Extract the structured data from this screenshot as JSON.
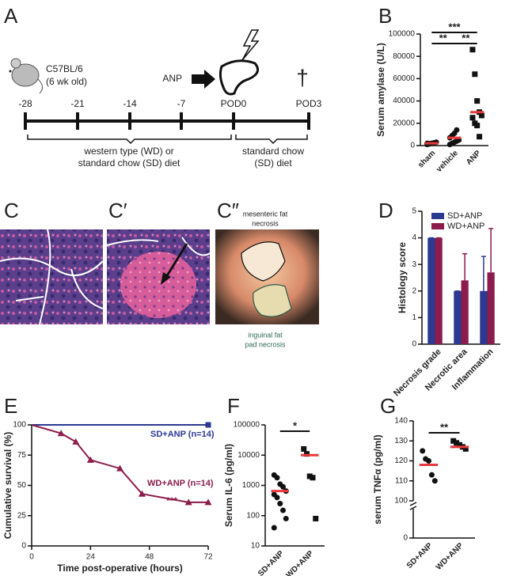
{
  "timeline": {
    "panel": "A",
    "mouse": [
      "C57BL/6",
      "(6 wk old)"
    ],
    "treatment": "ANP",
    "death_marker": "†",
    "days": [
      "-28",
      "-21",
      "-14",
      "-7",
      "POD0",
      "POD3"
    ],
    "diet_periods": [
      [
        "western type (WD) or",
        "standard chow (SD) diet"
      ],
      [
        "standard chow",
        "(SD) diet"
      ]
    ]
  },
  "histology": {
    "panels": [
      "C",
      "C′",
      "C″"
    ],
    "annotations": [
      [
        "mesenteric fat",
        "necrosis"
      ],
      [
        "inguinal fat",
        "pad necrosis"
      ]
    ]
  },
  "chart_data": [
    {
      "panel": "B",
      "type": "dotplot",
      "ylabel": "Serum amylase (U/L)",
      "categories": [
        "sham",
        "vehicle",
        "ANP"
      ],
      "points": [
        [
          1000,
          1500,
          2000,
          2500,
          3000,
          2000,
          1800
        ],
        [
          1000,
          2000,
          3000,
          4000,
          5000,
          7000,
          9000,
          11000,
          14000
        ],
        [
          86000,
          64000,
          40000,
          30000,
          27000,
          25000,
          20000,
          18000,
          8000
        ]
      ],
      "markers": [
        "circle",
        "circle",
        "square"
      ],
      "means": [
        2000,
        7000,
        30000
      ],
      "mean_color": "#e8383d",
      "ylim": [
        0,
        100000
      ],
      "yticks": [
        0,
        20000,
        40000,
        60000,
        80000,
        100000
      ],
      "significance": [
        "***",
        "**",
        "**"
      ]
    },
    {
      "panel": "D",
      "type": "bar",
      "ylabel": "Histology score",
      "categories": [
        "Necrosis grade",
        "Necrotic area",
        "Inflammation"
      ],
      "series": [
        {
          "name": "SD+ANP",
          "color": "#2b3990",
          "values": [
            4,
            2,
            2
          ],
          "errors": [
            0,
            0,
            1.3
          ]
        },
        {
          "name": "WD+ANP",
          "color": "#8b1c4c",
          "values": [
            4,
            2.4,
            2.7
          ],
          "errors": [
            0,
            1.0,
            1.65
          ]
        }
      ],
      "ylim": [
        0,
        5
      ],
      "yticks": [
        0,
        1,
        2,
        3,
        4,
        5
      ],
      "legend": "top"
    },
    {
      "panel": "E",
      "type": "line",
      "ylabel": "Cumulative survival (%)",
      "xlabel": "Time post-operative (hours)",
      "series": [
        {
          "name": "SD+ANP (n=14)",
          "color": "#2b3990",
          "marker": "square",
          "x": [
            0,
            72
          ],
          "values": [
            100,
            100
          ]
        },
        {
          "name": "WD+ANP (n=14)",
          "color": "#8b1c4c",
          "marker": "triangle",
          "x": [
            0,
            12,
            18,
            24,
            36,
            45,
            64,
            72
          ],
          "values": [
            100,
            93,
            86,
            71,
            64,
            43,
            36,
            36
          ]
        }
      ],
      "annotation": "***",
      "xlim": [
        0,
        72
      ],
      "xticks": [
        0,
        24,
        48,
        72
      ],
      "ylim": [
        0,
        100
      ],
      "yticks": [
        0,
        25,
        50,
        75,
        100
      ]
    },
    {
      "panel": "F",
      "type": "dotplot",
      "ylabel": "Serum IL-6 (pg/ml)",
      "categories": [
        "SD+ANP",
        "WD+ANP"
      ],
      "points": [
        [
          2200,
          1800,
          1100,
          900,
          650,
          500,
          400,
          250,
          150,
          80,
          40
        ],
        [
          16000,
          11000,
          2000,
          1800,
          80
        ]
      ],
      "markers": [
        "circle",
        "square"
      ],
      "means": [
        650,
        10000
      ],
      "mean_color": "#e8383d",
      "log": true,
      "ylim": [
        10,
        100000
      ],
      "yticks": [
        10,
        100,
        1000,
        10000,
        100000
      ],
      "significance": [
        "*"
      ]
    },
    {
      "panel": "G",
      "type": "dotplot",
      "ylabel": "serum TNFα (pg/ml)",
      "categories": [
        "SD+ANP",
        "WD+ANP"
      ],
      "points": [
        [
          125,
          121,
          120,
          113,
          110
        ],
        [
          130,
          129,
          128,
          127,
          126
        ]
      ],
      "markers": [
        "circle",
        "square"
      ],
      "means": [
        118,
        127
      ],
      "mean_color": "#e8383d",
      "axis_break": true,
      "ylim": [
        100,
        140
      ],
      "yticks": [
        0,
        100,
        110,
        120,
        130,
        140
      ],
      "significance": [
        "**"
      ]
    }
  ]
}
